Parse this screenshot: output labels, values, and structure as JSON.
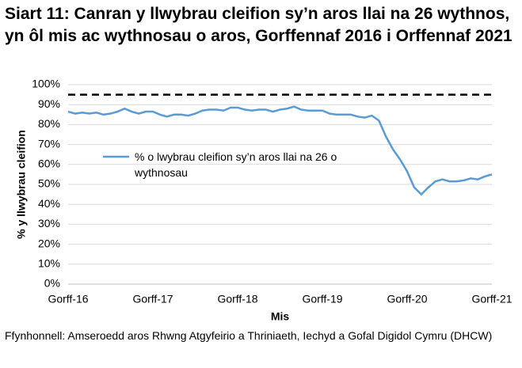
{
  "chart_data": {
    "type": "line",
    "title": "Siart 11: Canran y llwybrau cleifion sy’n aros llai na 26 wythnos, yn ôl mis ac wythnosau o aros, Gorffennaf 2016 i Orffennaf 2021",
    "x_label": "Mis",
    "y_label": "% y llwybrau cleifion",
    "source": "Ffynhonnell: Amseroedd aros Rhwng Atgyfeirio a Thriniaeth, Iechyd a Gofal Digidol Cymru (DHCW)",
    "categories": [
      "Gorff-16",
      null,
      null,
      null,
      null,
      null,
      null,
      null,
      null,
      null,
      null,
      null,
      "Gorff-17",
      null,
      null,
      null,
      null,
      null,
      null,
      null,
      null,
      null,
      null,
      null,
      "Gorff-18",
      null,
      null,
      null,
      null,
      null,
      null,
      null,
      null,
      null,
      null,
      null,
      "Gorff-19",
      null,
      null,
      null,
      null,
      null,
      null,
      null,
      null,
      null,
      null,
      null,
      "Gorff-20",
      null,
      null,
      null,
      null,
      null,
      null,
      null,
      null,
      null,
      null,
      null,
      "Gorff-21"
    ],
    "series": [
      {
        "name": "% o lwybrau cleifion sy’n aros llai na 26 o wythnosau",
        "color": "#5b9bd5",
        "values": [
          86.5,
          85.5,
          86,
          85.5,
          86,
          85,
          85.5,
          86.5,
          88,
          86.5,
          85.5,
          86.5,
          86.5,
          85,
          84,
          85,
          85,
          84.5,
          85.5,
          87,
          87.5,
          87.5,
          87,
          88.5,
          88.5,
          87.5,
          87,
          87.5,
          87.5,
          86.5,
          87.5,
          88,
          89,
          87.5,
          87,
          87,
          87,
          85.5,
          85,
          85,
          85,
          84,
          83.5,
          84.5,
          82,
          74,
          67.5,
          62.5,
          56.5,
          48.5,
          45,
          48.5,
          51.5,
          52.5,
          51.5,
          51.5,
          52,
          53,
          52.5,
          54,
          55
        ]
      }
    ],
    "reference_line": {
      "value": 95,
      "color": "#000000",
      "style": "dashed"
    },
    "ylim": [
      0,
      100
    ],
    "yticks": [
      {
        "value": 0,
        "label": "0%"
      },
      {
        "value": 10,
        "label": "10%"
      },
      {
        "value": 20,
        "label": "20%"
      },
      {
        "value": 30,
        "label": "30%"
      },
      {
        "value": 40,
        "label": "40%"
      },
      {
        "value": 50,
        "label": "50%"
      },
      {
        "value": 60,
        "label": "60%"
      },
      {
        "value": 70,
        "label": "70%"
      },
      {
        "value": 80,
        "label": "80%"
      },
      {
        "value": 90,
        "label": "90%"
      },
      {
        "value": 100,
        "label": "100%"
      }
    ],
    "grid": true,
    "legend": "center left"
  }
}
